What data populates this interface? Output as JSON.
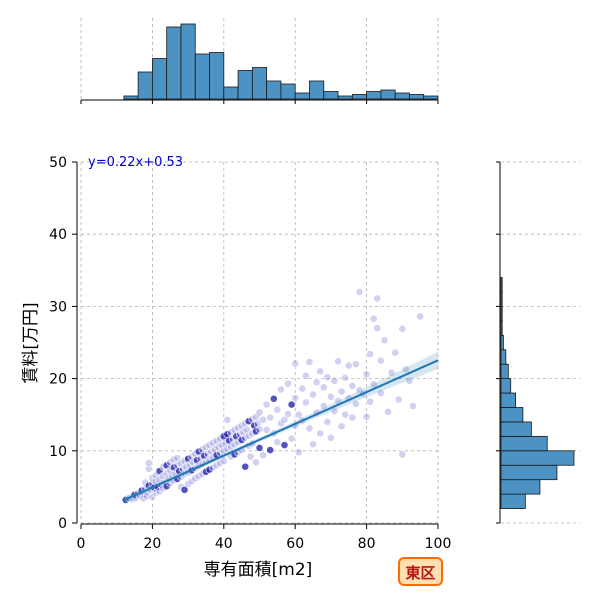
{
  "chart_data": {
    "type": "scatter",
    "title": "",
    "xlabel": "専有面積[m2]",
    "ylabel": "賃料[万円]",
    "xlim": [
      0,
      100
    ],
    "ylim": [
      0,
      50
    ],
    "xticks": [
      0,
      20,
      40,
      60,
      80,
      100
    ],
    "yticks": [
      0,
      10,
      20,
      30,
      40,
      50
    ],
    "grid": true,
    "regression": {
      "equation_label": "y=0.22x+0.53",
      "slope": 0.22,
      "intercept": 0.53,
      "x_range": [
        12,
        100
      ]
    },
    "badge": "東区",
    "scatter_series": {
      "name": "",
      "points": [
        [
          12.5,
          3.2
        ],
        [
          13.5,
          3.4
        ],
        [
          14.5,
          3.3
        ],
        [
          15,
          3.9
        ],
        [
          15.5,
          3.5
        ],
        [
          16,
          4.1
        ],
        [
          16.5,
          3.8
        ],
        [
          17,
          4.5
        ],
        [
          17.5,
          4.0
        ],
        [
          17.5,
          3.4
        ],
        [
          18,
          4.8
        ],
        [
          18,
          5.6
        ],
        [
          18.5,
          4.3
        ],
        [
          18.5,
          3.7
        ],
        [
          19,
          5.2
        ],
        [
          19,
          7.5
        ],
        [
          19,
          8.3
        ],
        [
          19.5,
          4.6
        ],
        [
          20,
          5.5
        ],
        [
          20,
          3.6
        ],
        [
          20,
          6.2
        ],
        [
          20.5,
          4.9
        ],
        [
          21,
          5.8
        ],
        [
          21,
          4.2
        ],
        [
          21,
          6.6
        ],
        [
          21.5,
          5.0
        ],
        [
          22,
          6.0
        ],
        [
          22,
          4.4
        ],
        [
          22,
          7.2
        ],
        [
          22.5,
          5.3
        ],
        [
          23,
          6.5
        ],
        [
          23,
          4.8
        ],
        [
          23,
          7.8
        ],
        [
          23.5,
          5.6
        ],
        [
          24,
          6.9
        ],
        [
          24,
          5.1
        ],
        [
          24,
          8.0
        ],
        [
          24.5,
          6.2
        ],
        [
          25,
          7.3
        ],
        [
          25,
          5.5
        ],
        [
          25,
          8.4
        ],
        [
          25.5,
          6.6
        ],
        [
          26,
          7.7
        ],
        [
          26,
          5.9
        ],
        [
          26,
          8.8
        ],
        [
          26.5,
          6.9
        ],
        [
          27,
          8.0
        ],
        [
          27,
          6.1
        ],
        [
          27,
          9.0
        ],
        [
          27.5,
          7.2
        ],
        [
          28,
          8.3
        ],
        [
          28,
          6.4
        ],
        [
          28,
          5.0
        ],
        [
          28.5,
          7.5
        ],
        [
          29,
          8.6
        ],
        [
          29,
          6.8
        ],
        [
          29,
          4.6
        ],
        [
          29.5,
          7.8
        ],
        [
          30,
          8.9
        ],
        [
          30,
          7.0
        ],
        [
          30,
          5.4
        ],
        [
          30.5,
          8.1
        ],
        [
          31,
          9.2
        ],
        [
          31,
          7.3
        ],
        [
          31,
          5.8
        ],
        [
          31.5,
          8.4
        ],
        [
          32,
          9.6
        ],
        [
          32,
          7.6
        ],
        [
          32,
          6.2
        ],
        [
          32.5,
          8.7
        ],
        [
          33,
          9.9
        ],
        [
          33,
          7.9
        ],
        [
          33,
          6.5
        ],
        [
          33.5,
          9.0
        ],
        [
          34,
          10.2
        ],
        [
          34,
          8.2
        ],
        [
          34,
          6.8
        ],
        [
          34.5,
          9.3
        ],
        [
          35,
          10.5
        ],
        [
          35,
          8.5
        ],
        [
          35,
          7.1
        ],
        [
          35.5,
          9.6
        ],
        [
          36,
          10.8
        ],
        [
          36,
          8.8
        ],
        [
          36,
          7.4
        ],
        [
          36.5,
          9.9
        ],
        [
          37,
          11.1
        ],
        [
          37,
          9.1
        ],
        [
          37,
          7.7
        ],
        [
          37.5,
          10.2
        ],
        [
          38,
          11.4
        ],
        [
          38,
          9.4
        ],
        [
          38,
          8.0
        ],
        [
          38.5,
          10.5
        ],
        [
          39,
          11.7
        ],
        [
          39,
          9.7
        ],
        [
          39,
          8.3
        ],
        [
          39.5,
          10.8
        ],
        [
          40,
          12.0
        ],
        [
          40,
          10.0
        ],
        [
          40,
          8.6
        ],
        [
          40.5,
          11.1
        ],
        [
          41,
          12.3
        ],
        [
          41,
          10.3
        ],
        [
          41,
          14.3
        ],
        [
          41.5,
          11.4
        ],
        [
          42,
          12.6
        ],
        [
          42,
          10.6
        ],
        [
          42,
          9.2
        ],
        [
          42.5,
          11.7
        ],
        [
          43,
          12.9
        ],
        [
          43,
          10.9
        ],
        [
          43,
          9.5
        ],
        [
          43.5,
          12.0
        ],
        [
          44,
          13.2
        ],
        [
          44,
          11.2
        ],
        [
          44,
          9.8
        ],
        [
          44.5,
          12.3
        ],
        [
          45,
          13.5
        ],
        [
          45,
          11.5
        ],
        [
          45,
          10.1
        ],
        [
          45.5,
          12.6
        ],
        [
          46,
          13.8
        ],
        [
          46,
          11.8
        ],
        [
          46,
          7.8
        ],
        [
          46.5,
          12.9
        ],
        [
          47,
          14.1
        ],
        [
          47,
          12.1
        ],
        [
          47,
          10.7
        ],
        [
          47.5,
          9.2
        ],
        [
          48,
          14.4
        ],
        [
          48,
          12.4
        ],
        [
          48,
          11.0
        ],
        [
          48.5,
          13.5
        ],
        [
          49,
          14.7
        ],
        [
          49,
          12.7
        ],
        [
          49,
          8.4
        ],
        [
          49.5,
          13.8
        ],
        [
          50,
          15.3
        ],
        [
          50,
          13.0
        ],
        [
          50,
          10.4
        ],
        [
          51,
          14.3
        ],
        [
          51,
          9.4
        ],
        [
          52,
          16.4
        ],
        [
          52,
          12.9
        ],
        [
          53,
          14.6
        ],
        [
          53,
          10.1
        ],
        [
          54,
          17.2
        ],
        [
          54,
          12.4
        ],
        [
          55,
          15.7
        ],
        [
          55,
          11.2
        ],
        [
          56,
          18.5
        ],
        [
          56,
          13.8
        ],
        [
          57,
          14.3
        ],
        [
          57,
          10.8
        ],
        [
          58,
          19.3
        ],
        [
          58,
          15.1
        ],
        [
          59,
          16.4
        ],
        [
          59,
          11.7
        ],
        [
          60,
          22.1
        ],
        [
          60,
          17.3
        ],
        [
          60,
          13.5
        ],
        [
          61,
          15.0
        ],
        [
          61,
          9.8
        ],
        [
          62,
          18.6
        ],
        [
          62,
          14.2
        ],
        [
          63,
          20.4
        ],
        [
          63,
          16.7
        ],
        [
          64,
          22.3
        ],
        [
          64,
          13.1
        ],
        [
          65,
          17.8
        ],
        [
          65,
          10.9
        ],
        [
          66,
          19.5
        ],
        [
          66,
          15.3
        ],
        [
          67,
          12.4
        ],
        [
          67,
          21.0
        ],
        [
          68,
          16.2
        ],
        [
          68,
          18.8
        ],
        [
          69,
          14.0
        ],
        [
          69,
          20.2
        ],
        [
          70,
          17.5
        ],
        [
          70,
          11.8
        ],
        [
          71,
          19.7
        ],
        [
          71,
          15.5
        ],
        [
          72,
          22.4
        ],
        [
          72,
          16.9
        ],
        [
          73,
          18.2
        ],
        [
          73,
          13.4
        ],
        [
          74,
          20.1
        ],
        [
          74,
          15.0
        ],
        [
          75,
          17.3
        ],
        [
          75,
          21.8
        ],
        [
          76,
          19.0
        ],
        [
          76,
          14.6
        ],
        [
          77,
          16.5
        ],
        [
          77,
          22.0
        ],
        [
          78,
          32.0
        ],
        [
          78,
          18.4
        ],
        [
          79,
          17.9
        ],
        [
          80,
          20.6
        ],
        [
          80,
          14.7
        ],
        [
          81,
          23.4
        ],
        [
          81,
          16.8
        ],
        [
          82,
          19.2
        ],
        [
          82,
          28.3
        ],
        [
          83,
          31.1
        ],
        [
          83,
          27.0
        ],
        [
          84,
          22.5
        ],
        [
          84,
          18.0
        ],
        [
          85,
          25.3
        ],
        [
          86,
          15.4
        ],
        [
          87,
          20.8
        ],
        [
          88,
          23.6
        ],
        [
          89,
          17.1
        ],
        [
          90,
          26.9
        ],
        [
          90,
          9.5
        ],
        [
          91,
          21.3
        ],
        [
          92,
          19.7
        ],
        [
          93,
          16.2
        ],
        [
          95,
          28.6
        ]
      ]
    },
    "histogram_x": {
      "bin_edges": [
        0,
        4,
        8,
        12,
        16,
        20,
        24,
        28,
        32,
        36,
        40,
        44,
        48,
        52,
        56,
        60,
        64,
        68,
        72,
        76,
        80,
        84,
        88,
        92,
        96,
        100
      ],
      "counts": [
        0,
        0,
        0,
        2,
        18,
        27,
        48,
        50,
        30,
        31,
        8,
        19,
        21,
        12,
        10,
        4,
        12,
        5,
        2,
        3,
        5,
        6,
        4,
        3,
        2
      ]
    },
    "histogram_y": {
      "bin_edges": [
        0,
        2,
        4,
        6,
        8,
        10,
        12,
        14,
        16,
        18,
        20,
        22,
        24,
        26,
        28,
        30,
        32,
        34,
        36,
        38,
        40,
        42,
        44,
        46,
        48,
        50
      ],
      "counts": [
        0,
        20,
        32,
        46,
        60,
        38,
        25,
        18,
        12,
        8,
        6,
        4,
        2,
        1,
        1,
        1,
        1,
        0,
        0,
        0,
        0,
        0,
        0,
        0,
        0
      ]
    }
  }
}
